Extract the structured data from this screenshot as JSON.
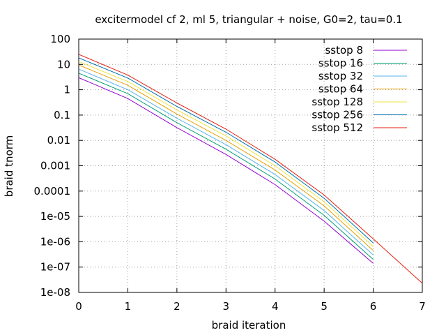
{
  "chart_data": {
    "type": "line",
    "title": "excitermodel cf 2, ml 5, triangular + noise, G0=2, tau=0.1",
    "xlabel": "braid iteration",
    "ylabel": "braid tnorm",
    "xlim": [
      0,
      7
    ],
    "ylim": [
      1e-08,
      100
    ],
    "yscale": "log",
    "grid": true,
    "legend_position": "top-right",
    "x_ticks": [
      "0",
      "1",
      "2",
      "3",
      "4",
      "5",
      "6",
      "7"
    ],
    "y_ticks": [
      "100",
      "10",
      "1",
      "0.1",
      "0.01",
      "0.001",
      "0.0001",
      "1e-05",
      "1e-06",
      "1e-07",
      "1e-08"
    ],
    "series": [
      {
        "name": "sstop 8",
        "color": "#9400d3",
        "x": [
          0,
          1,
          2,
          3,
          4,
          5,
          6
        ],
        "y": [
          3.0,
          0.45,
          0.032,
          0.0028,
          0.00018,
          6.5e-06,
          1.4e-07
        ]
      },
      {
        "name": "sstop 16",
        "color": "#009e73",
        "x": [
          0,
          1,
          2,
          3,
          4,
          5,
          6
        ],
        "y": [
          4.5,
          0.7,
          0.05,
          0.0045,
          0.0003,
          1.1e-05,
          2e-07
        ]
      },
      {
        "name": "sstop 32",
        "color": "#56b4e9",
        "x": [
          0,
          1,
          2,
          3,
          4,
          5,
          6
        ],
        "y": [
          6.5,
          1.0,
          0.075,
          0.0068,
          0.00045,
          1.7e-05,
          3e-07
        ]
      },
      {
        "name": "sstop 64",
        "color": "#e69f00",
        "x": [
          0,
          1,
          2,
          3,
          4,
          5,
          6
        ],
        "y": [
          9.5,
          1.5,
          0.11,
          0.01,
          0.00068,
          2.6e-05,
          4.5e-07
        ]
      },
      {
        "name": "sstop 128",
        "color": "#f0e442",
        "x": [
          0,
          1,
          2,
          3,
          4,
          5,
          6
        ],
        "y": [
          13.0,
          2.1,
          0.16,
          0.015,
          0.001,
          3.8e-05,
          6.5e-07
        ]
      },
      {
        "name": "sstop 256",
        "color": "#0072b2",
        "x": [
          0,
          1,
          2,
          3,
          4,
          5,
          6
        ],
        "y": [
          18.0,
          2.9,
          0.22,
          0.021,
          0.0014,
          5.2e-05,
          9e-07
        ]
      },
      {
        "name": "sstop 512",
        "color": "#e51e10",
        "x": [
          0,
          1,
          2,
          3,
          4,
          5,
          6,
          7
        ],
        "y": [
          25.0,
          3.8,
          0.3,
          0.028,
          0.0018,
          7e-05,
          1.3e-06,
          2.3e-08
        ]
      }
    ]
  }
}
